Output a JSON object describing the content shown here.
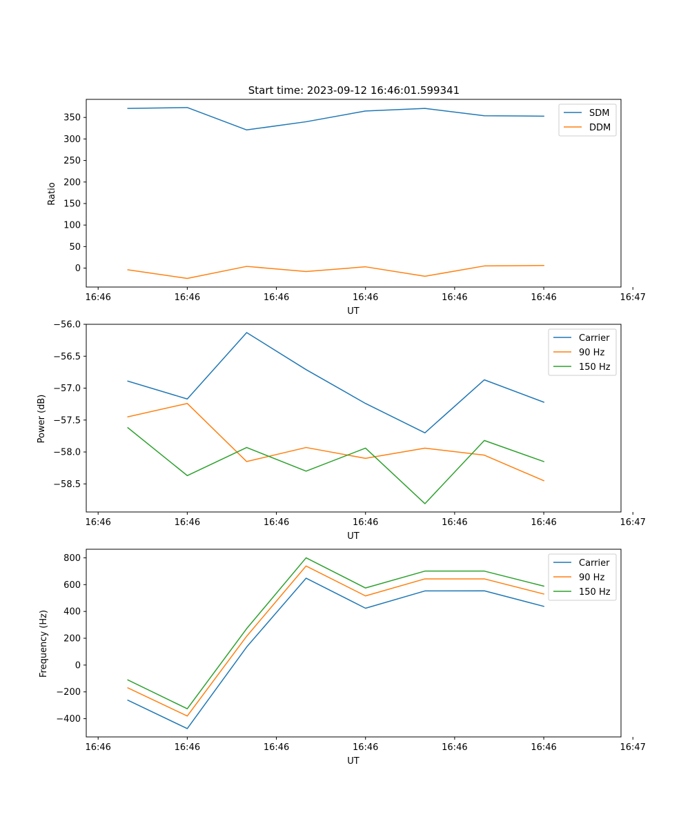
{
  "chart_data": [
    {
      "type": "line",
      "title": "Start time: 2023-09-12 16:46:01.599341",
      "xlabel": "UT",
      "ylabel": "Ratio",
      "x": [
        1,
        2,
        3,
        4,
        5,
        6,
        7,
        8
      ],
      "xlim": [
        0.3,
        9.3
      ],
      "xticks": [
        0.5,
        2.0,
        3.5,
        5.0,
        6.5,
        8.0,
        9.5
      ],
      "xtick_labels": [
        "16:46",
        "16:46",
        "16:46",
        "16:46",
        "16:46",
        "16:46",
        "16:47"
      ],
      "ylim": [
        -44,
        392
      ],
      "yticks": [
        0,
        50,
        100,
        150,
        200,
        250,
        300,
        350
      ],
      "ytick_labels": [
        "0",
        "50",
        "100",
        "150",
        "200",
        "250",
        "300",
        "350"
      ],
      "legend": "top-right",
      "series": [
        {
          "name": "SDM",
          "color": "#1f77b4",
          "values": [
            371,
            373,
            321,
            340,
            365,
            371,
            354,
            353
          ]
        },
        {
          "name": "DDM",
          "color": "#ff7f0e",
          "values": [
            -4,
            -24,
            4,
            -8,
            3,
            -19,
            5,
            6
          ]
        }
      ]
    },
    {
      "type": "line",
      "title": "",
      "xlabel": "UT",
      "ylabel": "Power (dB)",
      "x": [
        1,
        2,
        3,
        4,
        5,
        6,
        7,
        8
      ],
      "xlim": [
        0.3,
        9.3
      ],
      "xticks": [
        0.5,
        2.0,
        3.5,
        5.0,
        6.5,
        8.0,
        9.5
      ],
      "xtick_labels": [
        "16:46",
        "16:46",
        "16:46",
        "16:46",
        "16:46",
        "16:46",
        "16:47"
      ],
      "ylim": [
        -58.94,
        -56.0
      ],
      "yticks": [
        -58.5,
        -58.0,
        -57.5,
        -57.0,
        -56.5,
        -56.0
      ],
      "ytick_labels": [
        "−58.5",
        "−58.0",
        "−57.5",
        "−57.0",
        "−56.5",
        "−56.0"
      ],
      "legend": "top-right",
      "series": [
        {
          "name": "Carrier",
          "color": "#1f77b4",
          "values": [
            -56.89,
            -57.17,
            -56.13,
            -56.71,
            -57.24,
            -57.7,
            -56.87,
            -57.22
          ]
        },
        {
          "name": "90 Hz",
          "color": "#ff7f0e",
          "values": [
            -57.45,
            -57.24,
            -58.15,
            -57.93,
            -58.1,
            -57.94,
            -58.05,
            -58.45
          ]
        },
        {
          "name": "150 Hz",
          "color": "#2ca02c",
          "values": [
            -57.62,
            -58.37,
            -57.93,
            -58.3,
            -57.94,
            -58.81,
            -57.82,
            -58.15
          ]
        }
      ]
    },
    {
      "type": "line",
      "title": "",
      "xlabel": "UT",
      "ylabel": "Frequency (Hz)",
      "x": [
        1,
        2,
        3,
        4,
        5,
        6,
        7,
        8
      ],
      "xlim": [
        0.3,
        9.3
      ],
      "xticks": [
        0.5,
        2.0,
        3.5,
        5.0,
        6.5,
        8.0,
        9.5
      ],
      "xtick_labels": [
        "16:46",
        "16:46",
        "16:46",
        "16:46",
        "16:46",
        "16:46",
        "16:47"
      ],
      "ylim": [
        -536,
        864
      ],
      "yticks": [
        -400,
        -200,
        0,
        200,
        400,
        600,
        800
      ],
      "ytick_labels": [
        "−400",
        "−200",
        "0",
        "200",
        "400",
        "600",
        "800"
      ],
      "legend": "top-right",
      "series": [
        {
          "name": "Carrier",
          "color": "#1f77b4",
          "values": [
            -262,
            -474,
            135,
            648,
            424,
            553,
            554,
            438
          ]
        },
        {
          "name": "90 Hz",
          "color": "#ff7f0e",
          "values": [
            -170,
            -380,
            215,
            739,
            516,
            643,
            643,
            530
          ]
        },
        {
          "name": "150 Hz",
          "color": "#2ca02c",
          "values": [
            -111,
            -326,
            272,
            800,
            575,
            701,
            701,
            589
          ]
        }
      ]
    }
  ]
}
